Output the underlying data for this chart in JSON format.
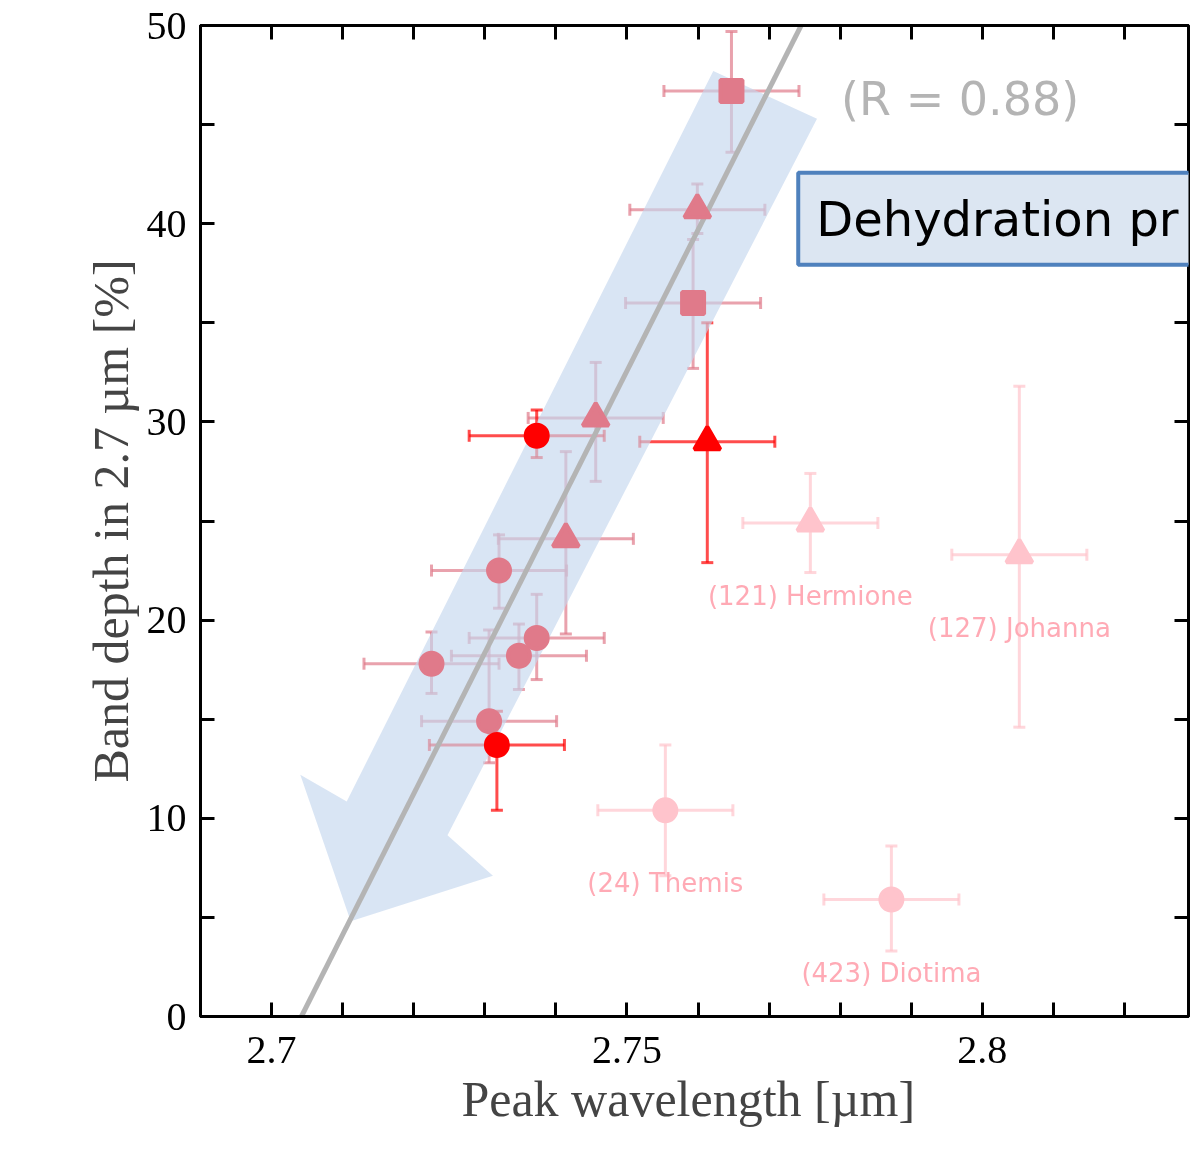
{
  "chart_data": {
    "type": "scatter",
    "xlabel": "Peak wavelength  [µm]",
    "ylabel": "Band depth in 2.7 µm [%]",
    "xlim": [
      2.69,
      2.829
    ],
    "ylim": [
      0,
      50
    ],
    "xticks": [
      {
        "value": 2.69,
        "label": null
      },
      2.7,
      {
        "value": 2.71,
        "label": null
      },
      {
        "value": 2.72,
        "label": null
      },
      {
        "value": 2.73,
        "label": null
      },
      {
        "value": 2.74,
        "label": null
      },
      2.75,
      {
        "value": 2.76,
        "label": null
      },
      {
        "value": 2.77,
        "label": null
      },
      {
        "value": 2.78,
        "label": null
      },
      {
        "value": 2.79,
        "label": null
      },
      2.8,
      {
        "value": 2.81,
        "label": null
      },
      {
        "value": 2.82,
        "label": null
      }
    ],
    "yticks": [
      0,
      {
        "value": 5,
        "label": null
      },
      10,
      {
        "value": 15,
        "label": null
      },
      20,
      {
        "value": 25,
        "label": null
      },
      30,
      {
        "value": 35,
        "label": null
      },
      40,
      {
        "value": 45,
        "label": null
      },
      50
    ],
    "grid": false,
    "series": [
      {
        "type": "line",
        "name": "(R = 0.88)",
        "color": "#b4b4b4",
        "x": [
          2.7042,
          2.7745
        ],
        "values": [
          0,
          50
        ],
        "marker": "none"
      },
      {
        "color": "#e07a8a",
        "marker": "square",
        "x": [
          2.7647,
          2.7593
        ],
        "values": [
          46.7,
          36.0
        ],
        "errors": [
          [
            43.6,
            49.7
          ],
          [
            32.7,
            39.2
          ]
        ],
        "xerrors": [
          0.0095,
          0.0095
        ]
      },
      {
        "color": "#e07a8a",
        "marker": "triangle",
        "x": [
          2.7599,
          2.7456,
          2.7414
        ],
        "values": [
          40.7,
          30.2,
          24.1
        ],
        "errors": [
          [
            39.5,
            42.0
          ],
          [
            27.0,
            33.0
          ],
          [
            19.3,
            28.5
          ]
        ],
        "xerrors": [
          0.0095,
          0.0095,
          0.0095
        ]
      },
      {
        "color": "#e07a8a",
        "marker": "circle",
        "x": [
          2.732,
          2.7373,
          2.7225,
          2.7306
        ],
        "values": [
          22.5,
          19.1,
          17.8,
          14.9
        ],
        "errors": [
          [
            20.6,
            24.3
          ],
          [
            17.0,
            21.3
          ],
          [
            16.3,
            19.4
          ],
          [
            12.8,
            19.5
          ]
        ],
        "xerrors": [
          0.0095,
          0.0095,
          0.0095,
          0.0095
        ]
      },
      {
        "color": "#e07a8a",
        "marker": "circle",
        "x": [
          2.7348
        ],
        "values": [
          18.2
        ],
        "errors": [
          [
            16.5,
            19.8
          ]
        ],
        "xerrors": [
          0.0095
        ]
      },
      {
        "color": "#ff0000",
        "marker": "triangle",
        "x": [
          2.7613
        ],
        "values": [
          29.0
        ],
        "errors": [
          [
            22.9,
            35.0
          ]
        ],
        "xerrors": [
          0.0095
        ]
      },
      {
        "color": "#ff0000",
        "marker": "circle",
        "x": [
          2.7373
        ],
        "values": [
          29.3
        ],
        "errors": [
          [
            28.2,
            30.6
          ]
        ],
        "xerrors": [
          0.0095
        ]
      },
      {
        "color": "#ff0000",
        "marker": "circle",
        "x": [
          2.7317
        ],
        "values": [
          13.7
        ],
        "errors": [
          [
            10.4,
            15.4
          ]
        ],
        "xerrors": [
          0.0095
        ]
      },
      {
        "color": "#ffc4cc",
        "marker": "triangle",
        "x": [
          2.7758,
          2.8052
        ],
        "values": [
          24.9,
          23.3
        ],
        "errors": [
          [
            22.4,
            27.4
          ],
          [
            14.6,
            31.8
          ]
        ],
        "xerrors": [
          0.0095,
          0.0095
        ]
      },
      {
        "color": "#ffc4cc",
        "marker": "circle",
        "x": [
          2.7554,
          2.7872
        ],
        "values": [
          10.4,
          5.9
        ],
        "errors": [
          [
            7.1,
            13.7
          ],
          [
            3.3,
            8.6
          ]
        ],
        "xerrors": [
          0.0095,
          0.0095
        ]
      }
    ],
    "annotations": [
      {
        "text": "(121) Hermione",
        "x": 2.7758,
        "y": 24.9
      },
      {
        "text": "(127) Johanna",
        "x": 2.8052,
        "y": 23.3
      },
      {
        "text": "(24) Themis",
        "x": 2.7554,
        "y": 10.4
      },
      {
        "text": "(423) Diotima",
        "x": 2.7872,
        "y": 5.9
      },
      "Dehydration pr"
    ]
  }
}
